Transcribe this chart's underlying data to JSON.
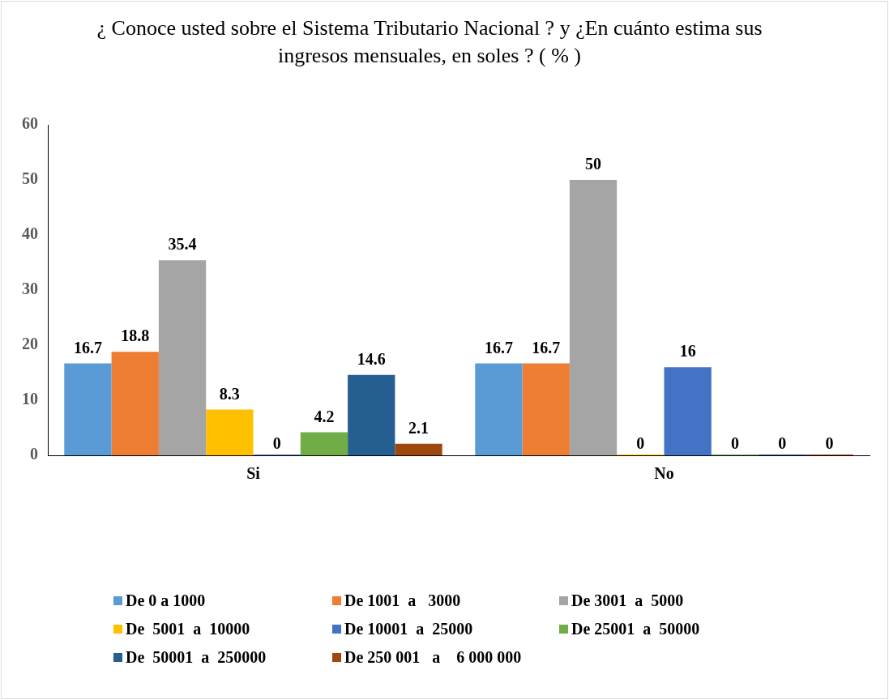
{
  "chart_data": {
    "type": "bar",
    "title": "¿ Conoce  usted  sobre el Sistema Tributario Nacional ? y ¿En cuánto estima sus ingresos mensuales, en soles ? ( % )",
    "categories": [
      "Si",
      "No"
    ],
    "series": [
      {
        "name": "De 0 a 1000",
        "color": "#5b9bd5",
        "values": [
          16.7,
          16.7
        ]
      },
      {
        "name": "De 1001  a   3000",
        "color": "#ed7d31",
        "values": [
          18.8,
          16.7
        ]
      },
      {
        "name": "De 3001  a  5000",
        "color": "#a5a5a5",
        "values": [
          35.4,
          50
        ]
      },
      {
        "name": "De  5001  a  10000",
        "color": "#ffc000",
        "values": [
          8.3,
          0
        ]
      },
      {
        "name": "De 10001  a  25000",
        "color": "#4472c4",
        "values": [
          0,
          16
        ]
      },
      {
        "name": "De 25001  a  50000",
        "color": "#70ad47",
        "values": [
          4.2,
          0
        ]
      },
      {
        "name": "De  50001  a  250000",
        "color": "#255e91",
        "values": [
          14.6,
          0
        ]
      },
      {
        "name": "De 250 001   a    6 000 000",
        "color": "#9e480e",
        "values": [
          2.1,
          0
        ]
      }
    ],
    "ylim": [
      0,
      60
    ],
    "yticks": [
      0,
      10,
      20,
      30,
      40,
      50,
      60
    ],
    "grid": false,
    "legend": "bottom",
    "data_labels": true
  }
}
